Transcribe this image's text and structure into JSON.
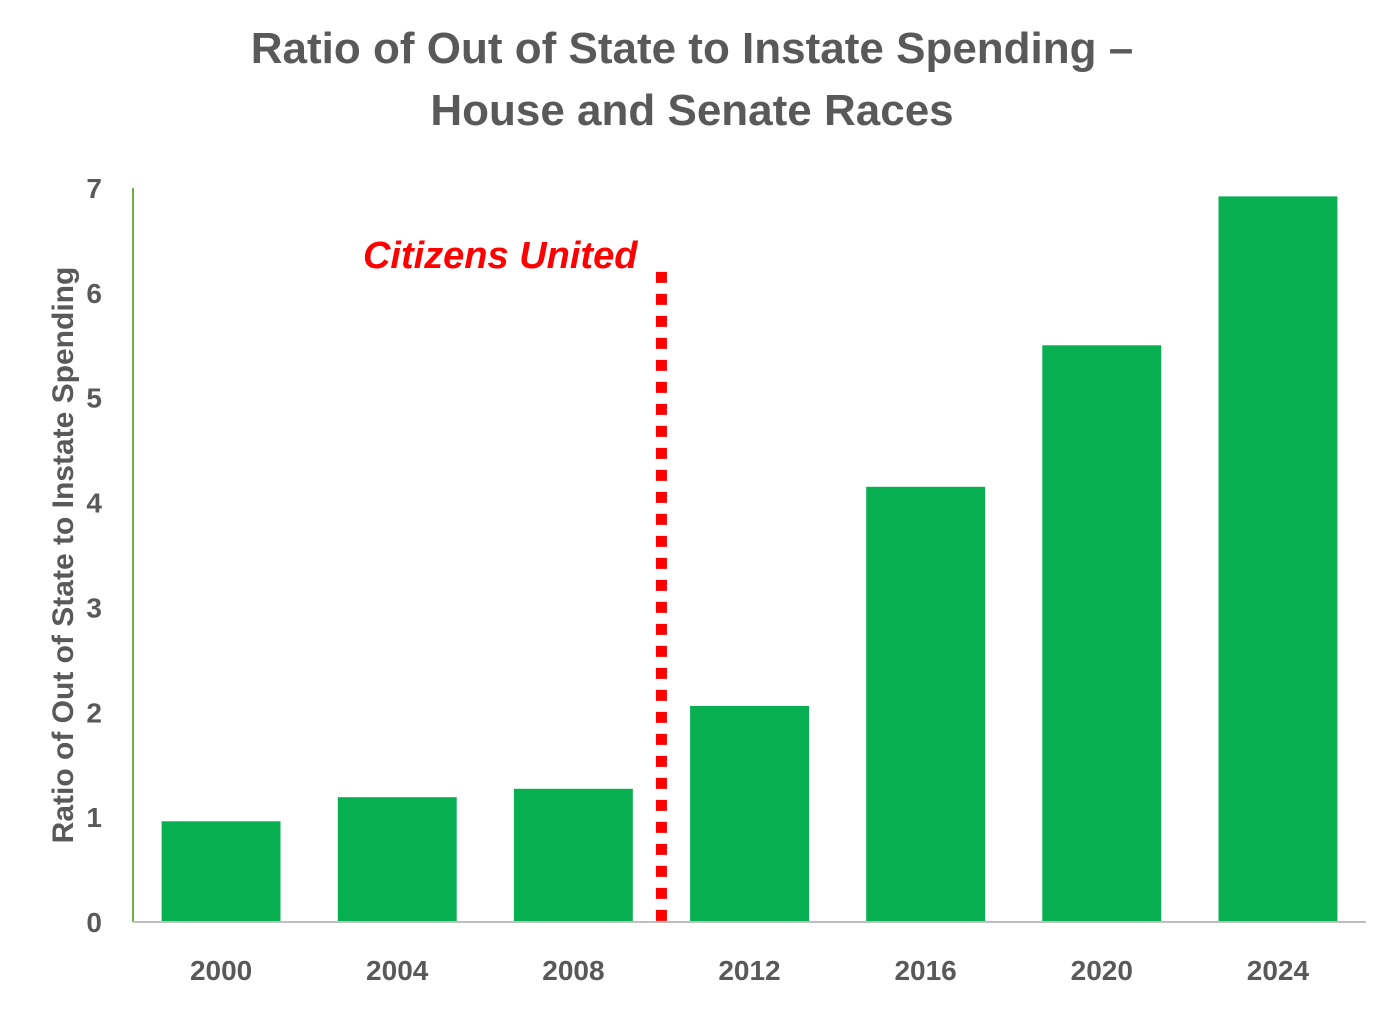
{
  "chart_data": {
    "type": "bar",
    "title_lines": [
      "Ratio of Out of State to Instate Spending –",
      "House and Senate Races"
    ],
    "xlabel": "",
    "ylabel": "Ratio of Out of State to Instate Spending",
    "categories": [
      "2000",
      "2004",
      "2008",
      "2012",
      "2016",
      "2020",
      "2024"
    ],
    "values": [
      0.96,
      1.19,
      1.27,
      2.06,
      4.15,
      5.5,
      6.92
    ],
    "ylim": [
      0,
      7
    ],
    "yticks": [
      "0",
      "1",
      "2",
      "3",
      "4",
      "5",
      "6",
      "7"
    ],
    "grid": false,
    "legend": "none",
    "colors": {
      "bar": "#08AF50",
      "axis": "#70AD47",
      "text": "#595959",
      "annotation": "#FF0000"
    },
    "annotation": {
      "text": "Citizens United",
      "x_between": [
        "2008",
        "2012"
      ],
      "y_top": 6.2,
      "style": "dotted-vertical-line"
    }
  }
}
